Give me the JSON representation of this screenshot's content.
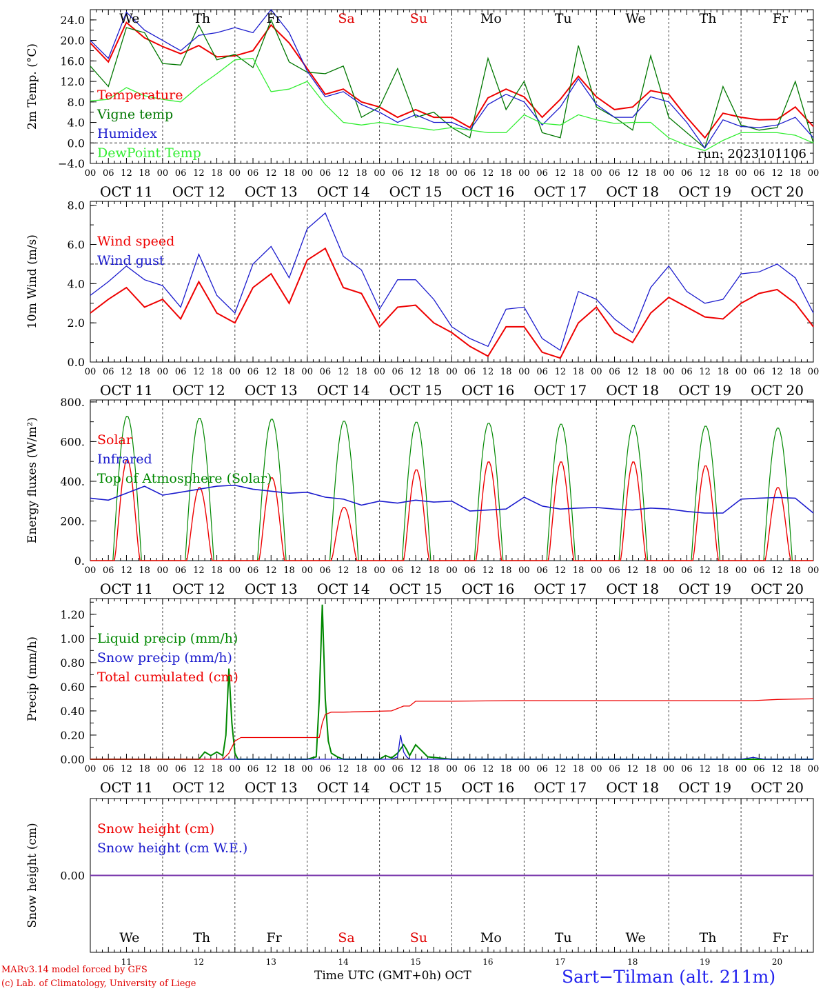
{
  "run_label": "run: 2023101106",
  "date_labels": [
    "OCT 11",
    "OCT 12",
    "OCT 13",
    "OCT 14",
    "OCT 15",
    "OCT 16",
    "OCT 17",
    "OCT 18",
    "OCT 19",
    "OCT 20"
  ],
  "hour_ticks": [
    "00",
    "06",
    "12",
    "18"
  ],
  "hour_ticks_end": "00",
  "weekdays": [
    {
      "label": "We",
      "color": "#000000"
    },
    {
      "label": "Th",
      "color": "#000000"
    },
    {
      "label": "Fr",
      "color": "#000000"
    },
    {
      "label": "Sa",
      "color": "#e00000"
    },
    {
      "label": "Su",
      "color": "#e00000"
    },
    {
      "label": "Mo",
      "color": "#000000"
    },
    {
      "label": "Tu",
      "color": "#000000"
    },
    {
      "label": "We",
      "color": "#000000"
    },
    {
      "label": "Th",
      "color": "#000000"
    },
    {
      "label": "Fr",
      "color": "#000000"
    }
  ],
  "day_numbers": [
    "11",
    "12",
    "13",
    "14",
    "15",
    "16",
    "17",
    "18",
    "19",
    "20"
  ],
  "footer": {
    "model": "MARv3.14 model forced by GFS",
    "lab": "(c) Lab. of Climatology, University of Liege",
    "axis": "Time UTC (GMT+0h) OCT",
    "station": "Sart−Tilman (alt. 211m)"
  },
  "chart_data": [
    {
      "type": "line",
      "ylabel": "2m Temp. (°C)",
      "ylim": [
        -4,
        26
      ],
      "ytick_labels": [
        "−4.0",
        "0.0",
        "4.0",
        "8.0",
        "12.0",
        "16.0",
        "20.0",
        "24.0"
      ],
      "ytick_values": [
        -4,
        0,
        4,
        8,
        12,
        16,
        20,
        24
      ],
      "x_unit": "hours since 2023-10-11 00 UTC",
      "series": [
        {
          "name": "Temperature",
          "color": "#ee0000",
          "x": [
            0,
            6,
            12,
            18,
            24,
            30,
            36,
            42,
            48,
            54,
            60,
            66,
            72,
            78,
            84,
            90,
            96,
            102,
            108,
            114,
            120,
            126,
            132,
            138,
            144,
            150,
            156,
            162,
            168,
            174,
            180,
            186,
            192,
            198,
            204,
            210,
            216,
            222,
            228,
            234,
            240
          ],
          "y": [
            19.5,
            15.8,
            23.5,
            20.5,
            18.8,
            17.4,
            19.0,
            16.8,
            17.0,
            18.0,
            23.0,
            19.5,
            14.5,
            9.5,
            10.5,
            8.0,
            7.0,
            5.0,
            6.5,
            5.0,
            5.0,
            3.0,
            8.8,
            10.5,
            9.0,
            5.0,
            8.5,
            13.0,
            9.0,
            6.5,
            7.0,
            10.2,
            9.5,
            5.0,
            1.0,
            5.8,
            5.0,
            4.5,
            4.6,
            7.0,
            3.2
          ]
        },
        {
          "name": "Vigne temp",
          "color": "#007700",
          "x": [
            0,
            6,
            12,
            18,
            24,
            30,
            36,
            42,
            48,
            54,
            60,
            66,
            72,
            78,
            84,
            90,
            96,
            102,
            108,
            114,
            120,
            126,
            132,
            138,
            144,
            150,
            156,
            162,
            168,
            174,
            180,
            186,
            192,
            198,
            204,
            210,
            216,
            222,
            228,
            234,
            240
          ],
          "y": [
            15.0,
            11.0,
            22.5,
            21.5,
            15.5,
            15.2,
            23.0,
            16.2,
            17.3,
            14.7,
            24.0,
            15.8,
            13.8,
            13.5,
            15.0,
            5.0,
            7.0,
            14.5,
            5.0,
            6.0,
            3.0,
            1.0,
            16.5,
            6.5,
            12.0,
            2.0,
            1.0,
            19.0,
            7.0,
            5.0,
            2.5,
            17.0,
            5.0,
            2.0,
            -1.0,
            11.0,
            3.5,
            2.5,
            3.0,
            12.0,
            0.0
          ]
        },
        {
          "name": "Humidex",
          "color": "#1a1acd",
          "x": [
            0,
            6,
            12,
            18,
            24,
            30,
            36,
            42,
            48,
            54,
            60,
            66,
            72,
            78,
            84,
            90,
            96,
            102,
            108,
            114,
            120,
            126,
            132,
            138,
            144,
            150,
            156,
            162,
            168,
            174,
            180,
            186,
            192,
            198,
            204,
            210,
            216,
            222,
            228,
            234,
            240
          ],
          "y": [
            20.0,
            16.5,
            25.5,
            22.0,
            20.0,
            18.0,
            21.0,
            21.5,
            22.5,
            21.5,
            26.0,
            21.5,
            14.0,
            9.0,
            10.0,
            7.5,
            6.0,
            4.0,
            5.5,
            4.0,
            4.0,
            2.5,
            7.5,
            9.5,
            8.0,
            3.5,
            7.0,
            12.5,
            7.5,
            5.0,
            5.0,
            9.0,
            8.0,
            4.0,
            -1.0,
            4.5,
            3.2,
            3.0,
            3.5,
            5.0,
            1.0
          ]
        },
        {
          "name": "DewPoint Temp",
          "color": "#33ee33",
          "x": [
            0,
            6,
            12,
            18,
            24,
            30,
            36,
            42,
            48,
            54,
            60,
            66,
            72,
            78,
            84,
            90,
            96,
            102,
            108,
            114,
            120,
            126,
            132,
            138,
            144,
            150,
            156,
            162,
            168,
            174,
            180,
            186,
            192,
            198,
            204,
            210,
            216,
            222,
            228,
            234,
            240
          ],
          "y": [
            8.2,
            8.5,
            10.8,
            9.2,
            8.5,
            8.0,
            11.0,
            13.5,
            16.2,
            16.5,
            10.0,
            10.5,
            12.0,
            7.5,
            4.0,
            3.5,
            4.0,
            3.5,
            3.0,
            2.5,
            3.0,
            2.5,
            2.0,
            2.0,
            5.5,
            3.8,
            3.5,
            5.5,
            4.5,
            3.8,
            4.0,
            4.0,
            1.0,
            -0.5,
            -1.5,
            0.5,
            2.0,
            2.0,
            2.0,
            1.5,
            0.0
          ]
        }
      ],
      "reference_line": 0
    },
    {
      "type": "line",
      "ylabel": "10m Wind (m/s)",
      "ylim": [
        0,
        8
      ],
      "ytick_labels": [
        "0.0",
        "2.0",
        "4.0",
        "6.0",
        "8.0"
      ],
      "ytick_values": [
        0,
        2,
        4,
        6,
        8
      ],
      "x_unit": "hours since 2023-10-11 00 UTC",
      "series": [
        {
          "name": "Wind speed",
          "color": "#ee0000",
          "x": [
            0,
            6,
            12,
            18,
            24,
            30,
            36,
            42,
            48,
            54,
            60,
            66,
            72,
            78,
            84,
            90,
            96,
            102,
            108,
            114,
            120,
            126,
            132,
            138,
            144,
            150,
            156,
            162,
            168,
            174,
            180,
            186,
            192,
            198,
            204,
            210,
            216,
            222,
            228,
            234,
            240
          ],
          "y": [
            2.5,
            3.2,
            3.8,
            2.8,
            3.2,
            2.2,
            4.1,
            2.5,
            2.0,
            3.8,
            4.5,
            3.0,
            5.2,
            5.8,
            3.8,
            3.5,
            1.8,
            2.8,
            2.9,
            2.0,
            1.5,
            0.8,
            0.3,
            1.8,
            1.8,
            0.5,
            0.2,
            2.0,
            2.8,
            1.5,
            1.0,
            2.5,
            3.3,
            2.8,
            2.3,
            2.2,
            3.0,
            3.5,
            3.7,
            3.0,
            1.8
          ]
        },
        {
          "name": "Wind gust",
          "color": "#1a1acd",
          "x": [
            0,
            6,
            12,
            18,
            24,
            30,
            36,
            42,
            48,
            54,
            60,
            66,
            72,
            78,
            84,
            90,
            96,
            102,
            108,
            114,
            120,
            126,
            132,
            138,
            144,
            150,
            156,
            162,
            168,
            174,
            180,
            186,
            192,
            198,
            204,
            210,
            216,
            222,
            228,
            234,
            240
          ],
          "y": [
            3.4,
            4.1,
            4.9,
            4.2,
            3.9,
            2.8,
            5.5,
            3.4,
            2.5,
            5.0,
            5.9,
            4.3,
            6.8,
            7.6,
            5.4,
            4.7,
            2.7,
            4.2,
            4.2,
            3.2,
            1.8,
            1.2,
            0.8,
            2.7,
            2.8,
            1.2,
            0.6,
            3.6,
            3.2,
            2.2,
            1.5,
            3.8,
            4.9,
            3.6,
            3.0,
            3.2,
            4.5,
            4.6,
            5.0,
            4.3,
            2.5
          ]
        }
      ],
      "reference_line": 5
    },
    {
      "type": "line",
      "ylabel": "Energy fluxes (W/m²)",
      "ylim": [
        0,
        800
      ],
      "ytick_labels": [
        "0.",
        "200.",
        "400.",
        "600.",
        "800."
      ],
      "ytick_values": [
        0,
        200,
        400,
        600,
        800
      ],
      "x_unit": "hours since 2023-10-11 00 UTC",
      "daily_peaks": {
        "Solar": [
          510,
          370,
          420,
          270,
          460,
          500,
          500,
          500,
          480,
          370
        ],
        "Top of Atmosphere (Solar)": [
          730,
          720,
          715,
          705,
          700,
          695,
          690,
          685,
          680,
          670
        ]
      },
      "series": [
        {
          "name": "Solar",
          "color": "#ee0000"
        },
        {
          "name": "Infrared",
          "color": "#1a1acd",
          "x": [
            0,
            6,
            12,
            18,
            24,
            30,
            36,
            42,
            48,
            54,
            60,
            66,
            72,
            78,
            84,
            90,
            96,
            102,
            108,
            114,
            120,
            126,
            132,
            138,
            144,
            150,
            156,
            162,
            168,
            174,
            180,
            186,
            192,
            198,
            204,
            210,
            216,
            222,
            228,
            234,
            240
          ],
          "y": [
            315,
            305,
            340,
            375,
            330,
            345,
            360,
            375,
            380,
            360,
            350,
            340,
            345,
            320,
            310,
            280,
            300,
            290,
            305,
            295,
            300,
            250,
            255,
            260,
            320,
            275,
            260,
            265,
            268,
            260,
            255,
            265,
            260,
            248,
            240,
            240,
            310,
            315,
            318,
            315,
            240
          ]
        },
        {
          "name": "Top of Atmosphere (Solar)",
          "color": "#008800"
        }
      ]
    },
    {
      "type": "line",
      "ylabel": "Precip (mm/h)",
      "ylim": [
        0,
        1.3
      ],
      "ytick_labels": [
        "0.00",
        "0.20",
        "0.40",
        "0.60",
        "0.80",
        "1.00",
        "1.20"
      ],
      "ytick_values": [
        0,
        0.2,
        0.4,
        0.6,
        0.8,
        1.0,
        1.2
      ],
      "x_unit": "hours since 2023-10-11 00 UTC",
      "series": [
        {
          "name": "Liquid precip (mm/h)",
          "color": "#008800",
          "x": [
            0,
            36,
            38,
            40,
            42,
            44,
            45,
            46,
            47,
            48,
            49,
            50,
            52,
            72,
            75,
            76,
            77,
            78,
            79,
            80,
            82,
            84,
            96,
            98,
            100,
            102,
            104,
            105,
            106,
            108,
            110,
            112,
            120,
            240
          ],
          "y": [
            0,
            0,
            0.06,
            0.03,
            0.06,
            0.03,
            0.2,
            0.75,
            0.3,
            0.05,
            0,
            0,
            0,
            0,
            0.02,
            0.5,
            1.28,
            0.5,
            0.15,
            0.05,
            0.02,
            0,
            0,
            0.03,
            0.01,
            0.05,
            0.12,
            0.08,
            0.03,
            0.12,
            0.07,
            0.02,
            0,
            0
          ]
        },
        {
          "name": "Snow precip (mm/h)",
          "color": "#1a1acd",
          "x": [
            0,
            100,
            102,
            103,
            104,
            105,
            106,
            120,
            216,
            220,
            224,
            240
          ],
          "y": [
            0,
            0,
            0.02,
            0.2,
            0.06,
            0.02,
            0,
            0,
            0,
            0.015,
            0,
            0
          ]
        },
        {
          "name": "Total cumulated (cm)",
          "color": "#ee0000",
          "x": [
            0,
            44,
            46,
            48,
            50,
            76,
            77,
            78,
            80,
            82,
            84,
            100,
            104,
            106,
            108,
            120,
            140,
            200,
            220,
            228,
            240
          ],
          "y": [
            0,
            0,
            0.05,
            0.15,
            0.18,
            0.18,
            0.3,
            0.37,
            0.39,
            0.39,
            0.39,
            0.4,
            0.44,
            0.44,
            0.48,
            0.48,
            0.485,
            0.485,
            0.485,
            0.495,
            0.5
          ]
        }
      ]
    },
    {
      "type": "line",
      "ylabel": "Snow height (cm)",
      "ytick_labels": [
        "0.00"
      ],
      "ytick_values": [
        0
      ],
      "x_unit": "hours since 2023-10-11 00 UTC",
      "series": [
        {
          "name": "Snow height (cm)",
          "color": "#ee0000",
          "x": [
            0,
            240
          ],
          "y": [
            0,
            0
          ]
        },
        {
          "name": "Snow height (cm W.E.)",
          "color": "#1a1acd",
          "x": [
            0,
            240
          ],
          "y": [
            0,
            0
          ]
        }
      ]
    }
  ]
}
